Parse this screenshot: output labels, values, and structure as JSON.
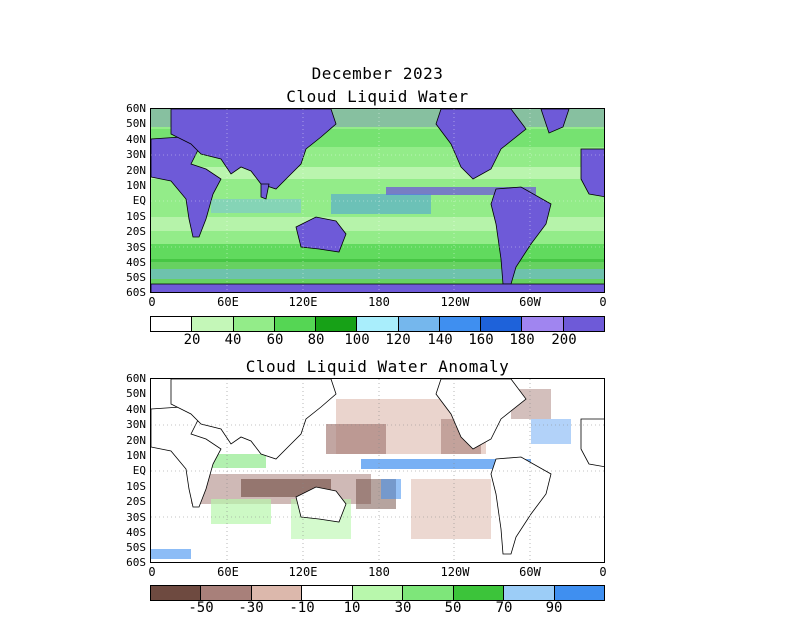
{
  "titles": {
    "date": "December 2023",
    "top_title": "Cloud Liquid Water",
    "bottom_title": "Cloud Liquid Water Anomaly"
  },
  "latitude_ticks": [
    "60N",
    "50N",
    "40N",
    "30N",
    "20N",
    "10N",
    "EQ",
    "10S",
    "20S",
    "30S",
    "40S",
    "50S",
    "60S"
  ],
  "longitude_ticks": [
    "0",
    "60E",
    "120E",
    "180",
    "120W",
    "60W",
    "0"
  ],
  "top_colorbar": {
    "colors": [
      "#ffffff",
      "#c4f7b8",
      "#93ec89",
      "#55d654",
      "#17a117",
      "#a9eefc",
      "#75b7ed",
      "#3f8ff0",
      "#1e62da",
      "#a085f0",
      "#6e5ad8"
    ],
    "labels": [
      "20",
      "40",
      "60",
      "80",
      "100",
      "120",
      "140",
      "160",
      "180",
      "200"
    ]
  },
  "bottom_colorbar": {
    "colors": [
      "#6e4a40",
      "#a8807a",
      "#dcb8ac",
      "#ffffff",
      "#b8f7ac",
      "#7ee67a",
      "#3cc43a",
      "#9ccdf7",
      "#3f8ff0"
    ],
    "labels": [
      "-50",
      "-30",
      "-10",
      "10",
      "30",
      "50",
      "70",
      "90"
    ]
  },
  "colors": {
    "land_top": "#6e5ad8",
    "ocean_base": "#93ec89",
    "coast": "#000000"
  }
}
